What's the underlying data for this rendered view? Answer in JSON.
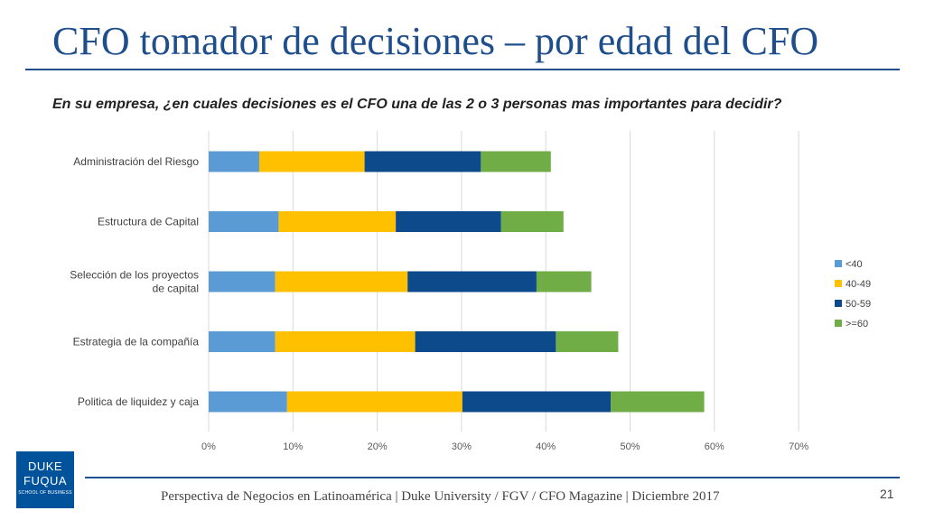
{
  "slide": {
    "title": "CFO tomador de decisiones – por edad del CFO",
    "question": "En su empresa, ¿en cuales decisiones es el CFO una de las 2 o 3 personas mas importantes para decidir?",
    "footer": "Perspectiva de Negocios en Latinoamérica | Duke University / FGV / CFO Magazine | Diciembre 2017",
    "page_number": "21",
    "logo": {
      "line1": "DUKE",
      "line2": "FUQUA",
      "line3": "SCHOOL OF BUSINESS"
    }
  },
  "colors": {
    "title": "#1f4e8c",
    "series": [
      "#5b9bd5",
      "#ffc000",
      "#0d4a8c",
      "#70ad47"
    ]
  },
  "chart_data": {
    "type": "bar",
    "orientation": "horizontal",
    "stacked": true,
    "categories": [
      "Administración del Riesgo",
      "Estructura de Capital",
      "Selección de los proyectos de capital",
      "Estrategia de la compañía",
      "Politica de liquidez y caja"
    ],
    "category_lines": [
      [
        "Administración del Riesgo"
      ],
      [
        "Estructura de Capital"
      ],
      [
        "Selección de los proyectos",
        "de capital"
      ],
      [
        "Estrategia de la compañía"
      ],
      [
        "Politica de liquidez y caja"
      ]
    ],
    "series": [
      {
        "name": "<40",
        "values": [
          6.0,
          8.3,
          7.9,
          7.9,
          9.3
        ]
      },
      {
        "name": "40-49",
        "values": [
          12.5,
          13.9,
          15.7,
          16.6,
          20.8
        ]
      },
      {
        "name": "50-59",
        "values": [
          13.8,
          12.5,
          15.3,
          16.7,
          17.6
        ]
      },
      {
        "name": ">=60",
        "values": [
          8.3,
          7.4,
          6.5,
          7.4,
          11.1
        ]
      }
    ],
    "xlim": [
      0,
      70
    ],
    "xticks": [
      0,
      10,
      20,
      30,
      40,
      50,
      60,
      70
    ],
    "xtick_labels": [
      "0%",
      "10%",
      "20%",
      "30%",
      "40%",
      "50%",
      "60%",
      "70%"
    ],
    "grid": true,
    "legend_position": "right"
  }
}
